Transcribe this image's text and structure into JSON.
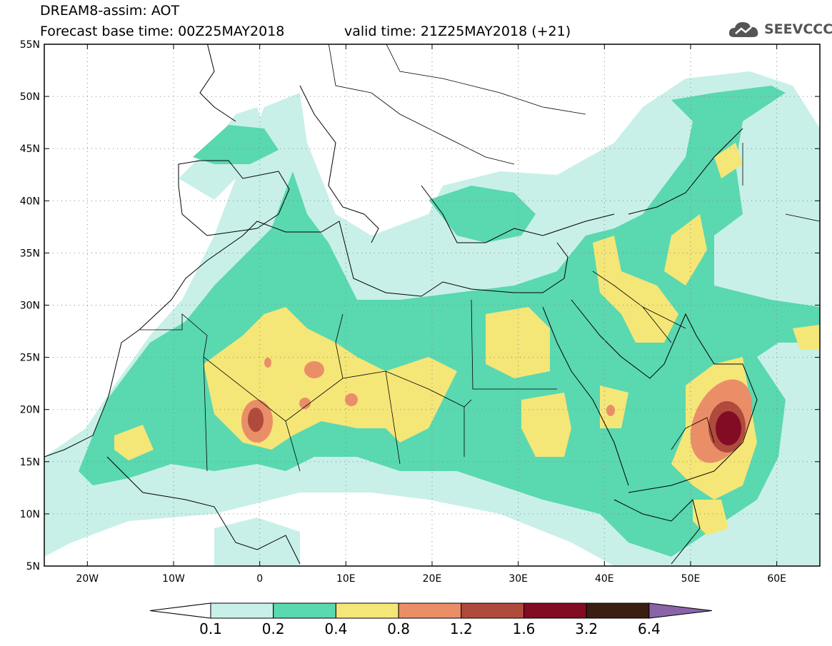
{
  "header": {
    "title": "DREAM8-assim: AOT",
    "base_time": "Forecast base time: 00Z25MAY2018",
    "valid_time": "valid time: 21Z25MAY2018 (+21)",
    "logo_text": "SEEVCCC"
  },
  "map": {
    "lon_range": [
      -25,
      65
    ],
    "lat_range": [
      5,
      55
    ],
    "lon_ticks": [
      {
        "value": -20,
        "label": "20W"
      },
      {
        "value": -10,
        "label": "10W"
      },
      {
        "value": 0,
        "label": "0"
      },
      {
        "value": 10,
        "label": "10E"
      },
      {
        "value": 20,
        "label": "20E"
      },
      {
        "value": 30,
        "label": "30E"
      },
      {
        "value": 40,
        "label": "40E"
      },
      {
        "value": 50,
        "label": "50E"
      },
      {
        "value": 60,
        "label": "60E"
      }
    ],
    "lat_ticks": [
      {
        "value": 55,
        "label": "55N"
      },
      {
        "value": 50,
        "label": "50N"
      },
      {
        "value": 45,
        "label": "45N"
      },
      {
        "value": 40,
        "label": "40N"
      },
      {
        "value": 35,
        "label": "35N"
      },
      {
        "value": 30,
        "label": "30N"
      },
      {
        "value": 25,
        "label": "25N"
      },
      {
        "value": 20,
        "label": "20N"
      },
      {
        "value": 15,
        "label": "15N"
      },
      {
        "value": 10,
        "label": "10N"
      },
      {
        "value": 5,
        "label": "5N"
      }
    ],
    "grid": "dotted"
  },
  "colorbar": {
    "levels": [
      "0.1",
      "0.2",
      "0.4",
      "0.8",
      "1.2",
      "1.6",
      "3.2",
      "6.4"
    ],
    "colors": [
      "#ffffff",
      "#c8f0e8",
      "#5ad8b0",
      "#f5e678",
      "#ea8e68",
      "#b04a3c",
      "#820c24",
      "#3a1e12",
      "#8a64a8"
    ]
  },
  "colors": {
    "c1": "#c8f0e8",
    "c2": "#5ad8b0",
    "c3": "#f5e678",
    "c4": "#ea8e68",
    "c5": "#b04a3c",
    "c6": "#820c24",
    "logo": "#555555"
  }
}
